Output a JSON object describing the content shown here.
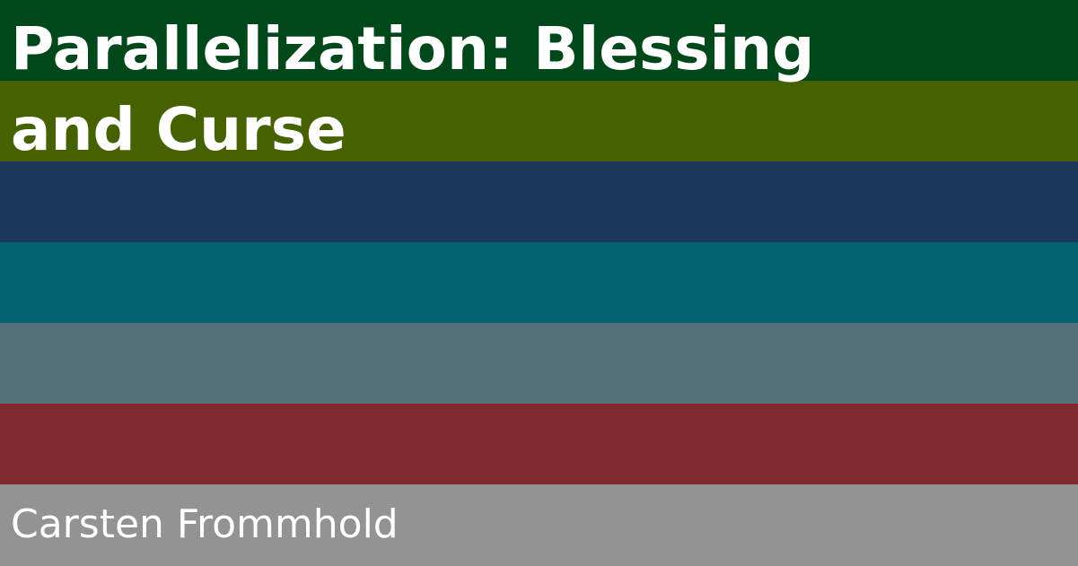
{
  "title_lines": [
    "Parallelization: Blessing",
    "and Curse"
  ],
  "author": "Carsten Frommhold",
  "band_colors": [
    "#00481a",
    "#466200",
    "#1c375c",
    "#00636f",
    "#54707a",
    "#7e2a2e",
    "#939393"
  ],
  "text_color": "#ffffff"
}
